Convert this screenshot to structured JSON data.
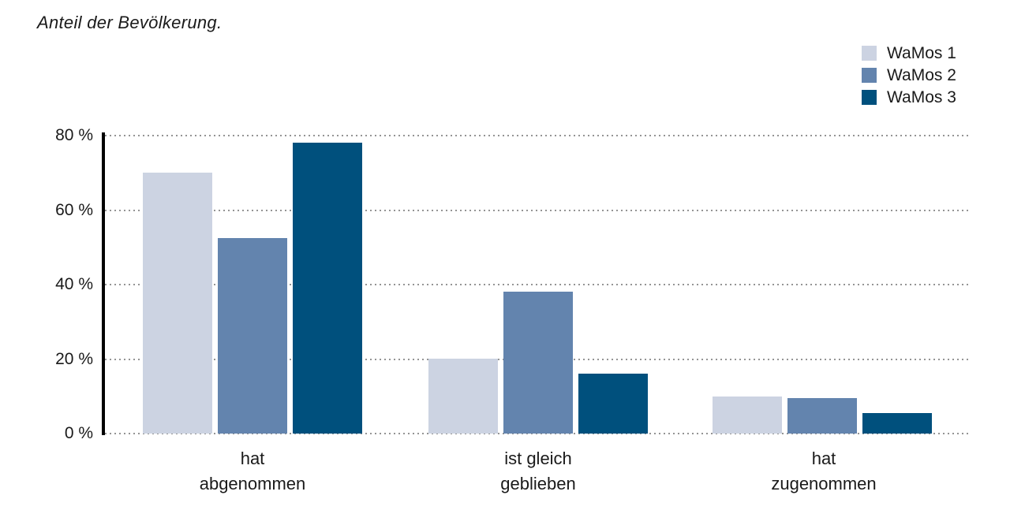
{
  "title": "Anteil der Bevölkerung.",
  "legend": {
    "position": "top-right",
    "items": [
      {
        "label": "WaMos 1",
        "color": "#ccd3e2"
      },
      {
        "label": "WaMos 2",
        "color": "#6384ae"
      },
      {
        "label": "WaMos 3",
        "color": "#00507d"
      }
    ]
  },
  "chart_data": {
    "type": "bar",
    "title": "Anteil der Bevölkerung.",
    "categories": [
      "hat abgenommen",
      "ist gleich geblieben",
      "hat zugenommen"
    ],
    "category_label_lines": [
      [
        "hat",
        "abgenommen"
      ],
      [
        "ist gleich",
        "geblieben"
      ],
      [
        "hat",
        "zugenommen"
      ]
    ],
    "series": [
      {
        "name": "WaMos 1",
        "color": "#ccd3e2",
        "values": [
          70,
          20,
          10
        ]
      },
      {
        "name": "WaMos 2",
        "color": "#6384ae",
        "values": [
          52.5,
          38,
          9.5
        ]
      },
      {
        "name": "WaMos 3",
        "color": "#00507d",
        "values": [
          78,
          16,
          5.5
        ]
      }
    ],
    "xlabel": "",
    "ylabel": "",
    "ylim": [
      0,
      80
    ],
    "yticks": [
      0,
      20,
      40,
      60,
      80
    ],
    "ytick_labels": [
      "0 %",
      "20 %",
      "40 %",
      "60 %",
      "80 %"
    ],
    "grid": "dotted-horizontal",
    "legend_position": "top-right"
  },
  "colors": {
    "background": "#ffffff",
    "axis": "#000000",
    "gridline": "#949494",
    "text": "#1a1a1a"
  }
}
